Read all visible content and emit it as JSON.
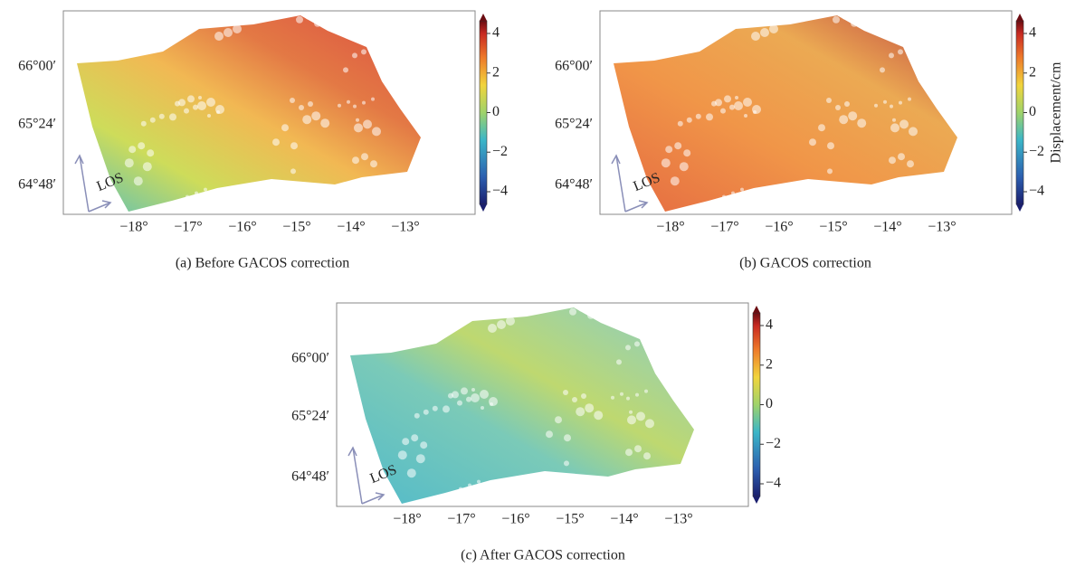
{
  "panels": [
    {
      "caption": "(a) Before GACOS correction",
      "lat_labels": [
        "66°00′",
        "65°24′",
        "64°48′"
      ],
      "lon_labels": [
        "−18°",
        "−17°",
        "−16°",
        "−15°",
        "−14°",
        "−13°"
      ],
      "los_label": "LOS",
      "colorbar_ticks": [
        {
          "value": 4,
          "label": "4"
        },
        {
          "value": 2,
          "label": "2"
        },
        {
          "value": 0,
          "label": "0"
        },
        {
          "value": -2,
          "label": "−2"
        },
        {
          "value": -4,
          "label": "−4"
        }
      ]
    },
    {
      "caption": "(b) GACOS correction",
      "lat_labels": [
        "66°00′",
        "65°24′",
        "64°48′"
      ],
      "lon_labels": [
        "−18°",
        "−17°",
        "−16°",
        "−15°",
        "−14°",
        "−13°"
      ],
      "los_label": "LOS",
      "colorbar_label": "Displacement/cm",
      "colorbar_ticks": [
        {
          "value": 4,
          "label": "4"
        },
        {
          "value": 2,
          "label": "2"
        },
        {
          "value": 0,
          "label": "0"
        },
        {
          "value": -2,
          "label": "−2"
        },
        {
          "value": -4,
          "label": "−4"
        }
      ]
    },
    {
      "caption": "(c) After GACOS correction",
      "lat_labels": [
        "66°00′",
        "65°24′",
        "64°48′"
      ],
      "lon_labels": [
        "−18°",
        "−17°",
        "−16°",
        "−15°",
        "−14°",
        "−13°"
      ],
      "los_label": "LOS",
      "colorbar_ticks": [
        {
          "value": 4,
          "label": "4"
        },
        {
          "value": 2,
          "label": "2"
        },
        {
          "value": 0,
          "label": "0"
        },
        {
          "value": -2,
          "label": "−2"
        },
        {
          "value": -4,
          "label": "−4"
        }
      ]
    }
  ]
}
